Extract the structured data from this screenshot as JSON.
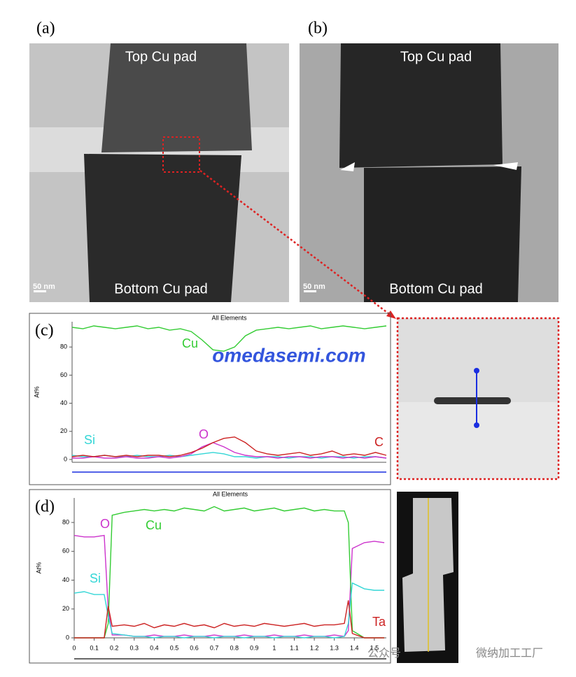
{
  "figure": {
    "panel_a": "(a)",
    "panel_b": "(b)",
    "top_a": "Top Cu pad",
    "bottom_a": "Bottom Cu pad",
    "scale_a": "50 nm",
    "top_b": "Top Cu pad",
    "bottom_b": "Bottom Cu pad",
    "scale_b": "50 nm",
    "panel_c": "(c)",
    "panel_d": "(d)",
    "watermark": "omedasemi.com",
    "footer_left": "公众号",
    "footer_right": "微纳加工工厂"
  },
  "chart_data": [
    {
      "type": "line",
      "title": "All Elements",
      "y_label": "At%",
      "ylim": [
        -2,
        98
      ],
      "yticks": [
        0,
        20,
        40,
        60,
        80
      ],
      "series": [
        {
          "name": "Cu",
          "color": "#33cc33",
          "values": [
            94,
            93,
            95,
            94,
            93,
            94,
            95,
            93,
            94,
            92,
            93,
            91,
            85,
            78,
            77,
            80,
            88,
            92,
            93,
            94,
            93,
            94,
            95,
            93,
            94,
            95,
            94,
            93,
            94,
            95
          ]
        },
        {
          "name": "Si",
          "color": "#33d6d6",
          "values": [
            3,
            2,
            2,
            3,
            2,
            2,
            3,
            2,
            2,
            3,
            2,
            3,
            4,
            5,
            4,
            2,
            2,
            1,
            2,
            2,
            1,
            2,
            2,
            1,
            2,
            2,
            1,
            2,
            2,
            1
          ]
        },
        {
          "name": "O",
          "color": "#cc33cc",
          "values": [
            1,
            1,
            2,
            1,
            1,
            2,
            1,
            1,
            2,
            1,
            2,
            4,
            9,
            12,
            9,
            5,
            3,
            2,
            2,
            1,
            2,
            2,
            1,
            2,
            2,
            1,
            2,
            1,
            2,
            1
          ]
        },
        {
          "name": "C",
          "color": "#cc2222",
          "values": [
            2,
            3,
            2,
            3,
            2,
            3,
            2,
            3,
            3,
            2,
            3,
            5,
            8,
            12,
            15,
            16,
            12,
            6,
            4,
            3,
            4,
            5,
            3,
            4,
            6,
            3,
            4,
            3,
            5,
            3
          ]
        }
      ]
    },
    {
      "type": "line",
      "title": "All Elements",
      "y_label": "At%",
      "ylim": [
        0,
        97
      ],
      "yticks": [
        0,
        20,
        40,
        60,
        80
      ],
      "xlim": [
        0,
        1.56
      ],
      "xticks": [
        0,
        0.1,
        0.2,
        0.3,
        0.4,
        0.5,
        0.6,
        0.7,
        0.8,
        0.9,
        1,
        1.1,
        1.2,
        1.3,
        1.4,
        1.5
      ],
      "x": [
        0,
        0.05,
        0.1,
        0.15,
        0.17,
        0.19,
        0.25,
        0.3,
        0.35,
        0.4,
        0.45,
        0.5,
        0.55,
        0.6,
        0.65,
        0.7,
        0.75,
        0.8,
        0.85,
        0.9,
        0.95,
        1,
        1.05,
        1.1,
        1.15,
        1.2,
        1.25,
        1.3,
        1.35,
        1.37,
        1.39,
        1.45,
        1.5,
        1.55
      ],
      "series": [
        {
          "name": "O",
          "color": "#cc33cc",
          "values": [
            71,
            70,
            70,
            71,
            20,
            2,
            2,
            1,
            1,
            2,
            1,
            1,
            2,
            1,
            1,
            2,
            1,
            1,
            2,
            1,
            1,
            2,
            1,
            1,
            2,
            1,
            1,
            2,
            1,
            5,
            62,
            66,
            67,
            66
          ]
        },
        {
          "name": "Cu",
          "color": "#33cc33",
          "values": [
            0,
            0,
            0,
            0,
            10,
            85,
            87,
            88,
            89,
            88,
            89,
            88,
            90,
            89,
            88,
            91,
            88,
            89,
            90,
            88,
            89,
            90,
            88,
            89,
            90,
            88,
            89,
            88,
            88,
            80,
            5,
            0,
            0,
            0
          ]
        },
        {
          "name": "Si",
          "color": "#33d6d6",
          "values": [
            31,
            32,
            30,
            30,
            15,
            3,
            2,
            1,
            1,
            0,
            1,
            1,
            0,
            1,
            1,
            0,
            1,
            1,
            0,
            1,
            1,
            0,
            1,
            1,
            0,
            1,
            1,
            0,
            1,
            10,
            38,
            34,
            33,
            33
          ]
        },
        {
          "name": "Ta",
          "color": "#cc2222",
          "values": [
            0,
            0,
            0,
            0,
            22,
            8,
            9,
            8,
            10,
            7,
            9,
            8,
            10,
            8,
            9,
            7,
            10,
            8,
            9,
            8,
            10,
            9,
            8,
            9,
            10,
            8,
            9,
            9,
            10,
            26,
            3,
            0,
            0,
            0
          ]
        }
      ]
    }
  ]
}
